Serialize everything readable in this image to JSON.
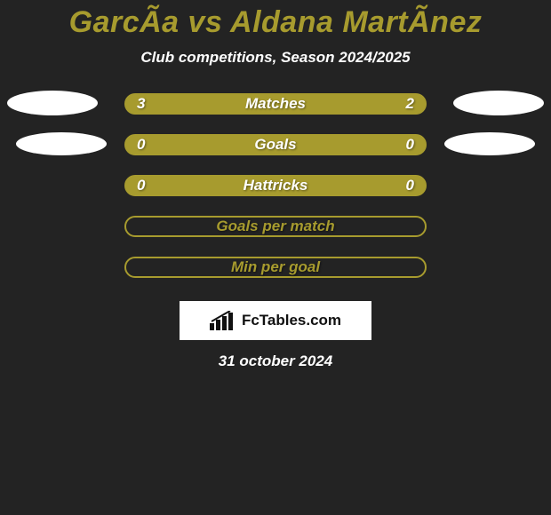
{
  "background_color": "#232323",
  "title": {
    "text": "GarcÃa vs Aldana MartÃnez",
    "color": "#a79b2e",
    "fontsize": 34
  },
  "subtitle": {
    "text": "Club competitions, Season 2024/2025",
    "color": "#ffffff",
    "fontsize": 17
  },
  "rows": [
    {
      "type": "stat",
      "label": "Matches",
      "left_value": "3",
      "right_value": "2",
      "label_color": "#ffffff",
      "label_fontsize": 17,
      "value_color": "#ffffff",
      "pill_fill": "#a79b2e",
      "pill_border": "#a79b2e",
      "show_left_ellipse": true,
      "show_right_ellipse": true,
      "ellipse_color": "#ffffff",
      "ellipse_variant": 1
    },
    {
      "type": "stat",
      "label": "Goals",
      "left_value": "0",
      "right_value": "0",
      "label_color": "#ffffff",
      "label_fontsize": 17,
      "value_color": "#ffffff",
      "pill_fill": "#a79b2e",
      "pill_border": "#a79b2e",
      "show_left_ellipse": true,
      "show_right_ellipse": true,
      "ellipse_color": "#ffffff",
      "ellipse_variant": 2
    },
    {
      "type": "stat",
      "label": "Hattricks",
      "left_value": "0",
      "right_value": "0",
      "label_color": "#ffffff",
      "label_fontsize": 17,
      "value_color": "#ffffff",
      "pill_fill": "#a79b2e",
      "pill_border": "#a79b2e",
      "show_left_ellipse": false,
      "show_right_ellipse": false
    },
    {
      "type": "label",
      "label": "Goals per match",
      "label_color": "#a79b2e",
      "label_fontsize": 17,
      "pill_fill": "#232323",
      "pill_border": "#a79b2e"
    },
    {
      "type": "label",
      "label": "Min per goal",
      "label_color": "#a79b2e",
      "label_fontsize": 17,
      "pill_fill": "#232323",
      "pill_border": "#a79b2e"
    }
  ],
  "logo": {
    "box_bg": "#ffffff",
    "text": "FcTables.com",
    "text_color": "#111111",
    "text_fontsize": 17,
    "icon_color": "#111111"
  },
  "date": {
    "text": "31 october 2024",
    "color": "#ffffff",
    "fontsize": 17
  }
}
